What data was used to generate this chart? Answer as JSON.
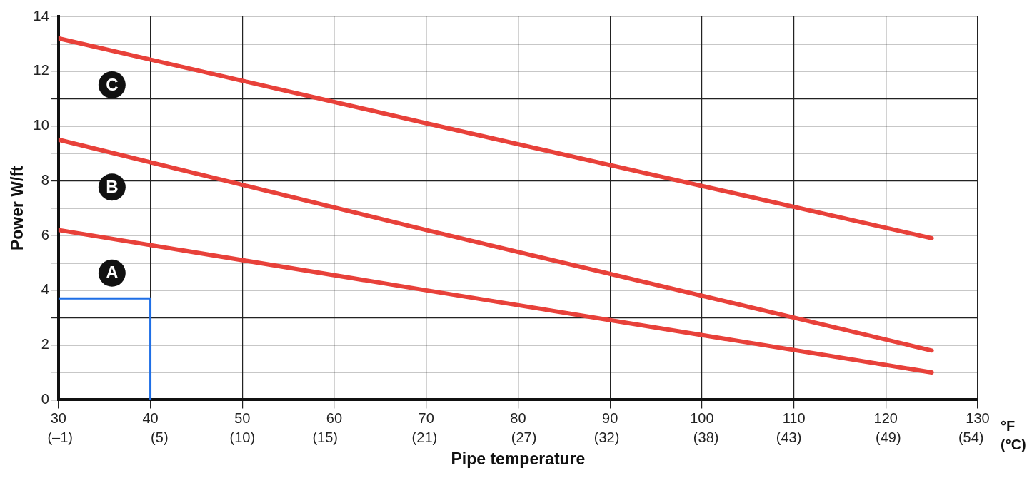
{
  "chart_data": {
    "type": "line",
    "xlabel": "Pipe temperature",
    "ylabel": "Power W/ft",
    "xlim": [
      30,
      130
    ],
    "ylim": [
      0,
      14
    ],
    "xticks": [
      30,
      40,
      50,
      60,
      70,
      80,
      90,
      100,
      110,
      120,
      130
    ],
    "x2lim": [
      -1.1,
      54.4
    ],
    "x2ticks": [
      {
        "value": -1,
        "label": "(–1)"
      },
      {
        "value": 5,
        "label": "(5)"
      },
      {
        "value": 10,
        "label": "(10)"
      },
      {
        "value": 15,
        "label": "(15)"
      },
      {
        "value": 21,
        "label": "(21)"
      },
      {
        "value": 27,
        "label": "(27)"
      },
      {
        "value": 32,
        "label": "(32)"
      },
      {
        "value": 38,
        "label": "(38)"
      },
      {
        "value": 43,
        "label": "(43)"
      },
      {
        "value": 49,
        "label": "(49)"
      },
      {
        "value": 54,
        "label": "(54)"
      }
    ],
    "yticks": [
      0,
      {
        "value": 1,
        "label": null
      },
      2,
      {
        "value": 3,
        "label": null
      },
      4,
      {
        "value": 5,
        "label": null
      },
      6,
      {
        "value": 7,
        "label": null
      },
      8,
      {
        "value": 9,
        "label": null
      },
      10,
      {
        "value": 11,
        "label": null
      },
      12,
      {
        "value": 13,
        "label": null
      },
      14
    ],
    "grid": true,
    "annotations": [
      "°F",
      "(°C)"
    ],
    "series": [
      {
        "name": "A",
        "color": "#e8413a",
        "x": [
          30,
          70,
          125
        ],
        "values": [
          6.2,
          4.0,
          1.0
        ]
      },
      {
        "name": "B",
        "color": "#e8413a",
        "x": [
          30,
          70,
          125
        ],
        "values": [
          9.5,
          6.2,
          1.8
        ]
      },
      {
        "name": "C",
        "color": "#e8413a",
        "x": [
          30,
          70,
          125
        ],
        "values": [
          13.2,
          10.1,
          5.9
        ]
      },
      {
        "color": "#1f6fe6",
        "x": [
          30,
          40,
          40
        ],
        "values": [
          3.7,
          3.7,
          0
        ]
      }
    ]
  }
}
